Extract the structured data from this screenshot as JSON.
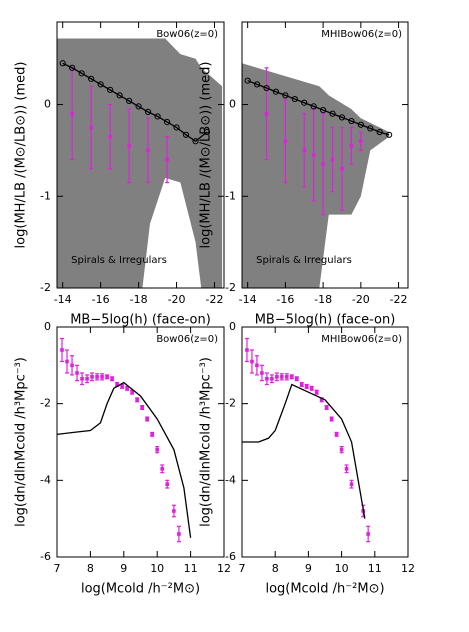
{
  "chart_data": [
    {
      "type": "line",
      "annotations": [
        "Bow06(z=0)",
        "Spirals & Irregulars"
      ],
      "xlabel": "MB−5log(h) (face-on)",
      "ylabel": "log(MH/LB /(M⊙/LB⊙)) (med)",
      "xlim": [
        -13.7,
        -22.5
      ],
      "xticks": [
        -14,
        -16,
        -18,
        -20,
        -22
      ],
      "ylim": [
        -2,
        0.9
      ],
      "yticks": [
        0,
        -1,
        -2
      ],
      "series": [
        {
          "type": "area",
          "color": "#808080",
          "x": [
            -13.7,
            -18.2,
            -18.6,
            -19.4,
            -20.2,
            -21,
            -21.3,
            -22.4
          ],
          "upper": [
            0.72,
            0.72,
            0.72,
            0.72,
            0.55,
            0.5,
            0.4,
            0.2
          ],
          "lower": [
            -2,
            -2,
            -1.3,
            -0.8,
            -0.85,
            -1.5,
            -2,
            -2
          ]
        },
        {
          "type": "errorbar",
          "color": "#e020e0",
          "x": [
            -14.5,
            -15.5,
            -16.5,
            -17.5,
            -18.5,
            -19.5
          ],
          "values": [
            -0.1,
            -0.25,
            -0.35,
            -0.45,
            -0.5,
            -0.6
          ],
          "errors": [
            0.5,
            0.45,
            0.35,
            0.4,
            0.35,
            0.25
          ]
        },
        {
          "type": "line",
          "color": "#000000",
          "x": [
            -14,
            -14.5,
            -15,
            -15.5,
            -16,
            -16.5,
            -17,
            -17.5,
            -18,
            -18.5,
            -19,
            -19.5,
            -20,
            -20.5,
            -21,
            -21.6
          ],
          "values": [
            0.45,
            0.4,
            0.34,
            0.28,
            0.22,
            0.16,
            0.1,
            0.04,
            -0.02,
            -0.08,
            -0.13,
            -0.19,
            -0.25,
            -0.33,
            -0.4,
            -0.3
          ]
        }
      ]
    },
    {
      "type": "line",
      "annotations": [
        "MHIBow06(z=0)",
        "Spirals & Irregulars"
      ],
      "xlabel": "MB−5log(h) (face-on)",
      "ylabel": "log(MH/LB /(M⊙/LB⊙)) (med)",
      "xlim": [
        -13.7,
        -22.5
      ],
      "xticks": [
        -14,
        -16,
        -18,
        -20,
        -22
      ],
      "ylim": [
        -2,
        0.9
      ],
      "yticks": [
        0,
        -1,
        -2
      ],
      "series": [
        {
          "type": "area",
          "color": "#808080",
          "x": [
            -13.7,
            -17.8,
            -18.3,
            -19.5,
            -20,
            -20.5,
            -21.5
          ],
          "upper": [
            0.45,
            0.2,
            0.1,
            -0.05,
            -0.15,
            -0.2,
            -0.3
          ],
          "lower": [
            -2,
            -2,
            -1.2,
            -1.2,
            -1,
            -0.5,
            -0.35
          ]
        },
        {
          "type": "errorbar",
          "color": "#e020e0",
          "x": [
            -15,
            -16,
            -17,
            -17.5,
            -18,
            -18.5,
            -19,
            -19.5,
            -20
          ],
          "values": [
            -0.1,
            -0.4,
            -0.5,
            -0.55,
            -0.65,
            -0.6,
            -0.7,
            -0.45,
            -0.4
          ],
          "errors": [
            0.5,
            0.45,
            0.4,
            0.5,
            0.55,
            0.35,
            0.45,
            0.2,
            0.1
          ]
        },
        {
          "type": "line",
          "color": "#000000",
          "x": [
            -14,
            -14.5,
            -15,
            -15.5,
            -16,
            -16.5,
            -17,
            -17.5,
            -18,
            -18.5,
            -19,
            -19.5,
            -20,
            -20.5,
            -21,
            -21.5
          ],
          "values": [
            0.26,
            0.22,
            0.18,
            0.14,
            0.1,
            0.06,
            0.02,
            -0.02,
            -0.06,
            -0.1,
            -0.14,
            -0.18,
            -0.22,
            -0.26,
            -0.3,
            -0.33
          ]
        }
      ]
    },
    {
      "type": "line",
      "annotations": [
        "Bow06(z=0)"
      ],
      "xlabel": "log(Mcold /h⁻²M⊙)",
      "ylabel": "log(dn/dlnMcold /h³Mpc⁻³)",
      "xlim": [
        7,
        12
      ],
      "xticks": [
        7,
        8,
        9,
        10,
        11,
        12
      ],
      "ylim": [
        -6,
        0
      ],
      "yticks": [
        0,
        -2,
        -4,
        -6
      ],
      "series": [
        {
          "type": "errorbar",
          "color": "#e020e0",
          "x": [
            7.15,
            7.3,
            7.45,
            7.6,
            7.75,
            7.9,
            8.05,
            8.2,
            8.35,
            8.5,
            8.65,
            8.8,
            8.95,
            9.1,
            9.25,
            9.4,
            9.55,
            9.7,
            9.85,
            10,
            10.15,
            10.3,
            10.5,
            10.65
          ],
          "values": [
            -0.6,
            -0.9,
            -1.0,
            -1.2,
            -1.35,
            -1.35,
            -1.3,
            -1.3,
            -1.3,
            -1.3,
            -1.35,
            -1.5,
            -1.55,
            -1.6,
            -1.7,
            -1.9,
            -2.1,
            -2.4,
            -2.8,
            -3.2,
            -3.7,
            -4.1,
            -4.8,
            -5.4
          ],
          "errors": [
            0.3,
            0.3,
            0.25,
            0.2,
            0.15,
            0.1,
            0.1,
            0.08,
            0.08,
            0.05,
            0.05,
            0.05,
            0.05,
            0.05,
            0.05,
            0.05,
            0.05,
            0.05,
            0.05,
            0.08,
            0.1,
            0.1,
            0.15,
            0.2
          ]
        },
        {
          "type": "line",
          "color": "#000000",
          "x": [
            7,
            7.5,
            8,
            8.3,
            8.5,
            8.7,
            9,
            9.5,
            10,
            10.5,
            10.8,
            11
          ],
          "values": [
            -2.8,
            -2.75,
            -2.7,
            -2.5,
            -2.0,
            -1.6,
            -1.45,
            -1.8,
            -2.4,
            -3.2,
            -4.2,
            -5.5
          ]
        }
      ]
    },
    {
      "type": "line",
      "annotations": [
        "MHIBow06(z=0)"
      ],
      "xlabel": "log(Mcold /h⁻²M⊙)",
      "ylabel": "log(dn/dlnMcold /h³Mpc⁻³)",
      "xlim": [
        7,
        12
      ],
      "xticks": [
        7,
        8,
        9,
        10,
        11,
        12
      ],
      "ylim": [
        -6,
        0
      ],
      "yticks": [
        0,
        -2,
        -4,
        -6
      ],
      "series": [
        {
          "type": "errorbar",
          "color": "#e020e0",
          "x": [
            7.15,
            7.3,
            7.45,
            7.6,
            7.75,
            7.9,
            8.05,
            8.2,
            8.35,
            8.5,
            8.65,
            8.8,
            8.95,
            9.1,
            9.25,
            9.4,
            9.55,
            9.7,
            9.85,
            10,
            10.15,
            10.3,
            10.65,
            10.8
          ],
          "values": [
            -0.6,
            -0.9,
            -1.0,
            -1.2,
            -1.35,
            -1.35,
            -1.3,
            -1.3,
            -1.3,
            -1.3,
            -1.35,
            -1.5,
            -1.55,
            -1.6,
            -1.7,
            -1.9,
            -2.1,
            -2.4,
            -2.8,
            -3.2,
            -3.7,
            -4.1,
            -4.8,
            -5.4
          ],
          "errors": [
            0.3,
            0.3,
            0.25,
            0.2,
            0.15,
            0.1,
            0.1,
            0.08,
            0.08,
            0.05,
            0.05,
            0.05,
            0.05,
            0.05,
            0.05,
            0.05,
            0.05,
            0.05,
            0.05,
            0.08,
            0.1,
            0.1,
            0.15,
            0.2
          ]
        },
        {
          "type": "line",
          "color": "#000000",
          "x": [
            7,
            7.5,
            7.8,
            8,
            8.3,
            8.5,
            9,
            9.5,
            10,
            10.3,
            10.5,
            10.7
          ],
          "values": [
            -3.0,
            -3.0,
            -2.9,
            -2.7,
            -2.0,
            -1.5,
            -1.7,
            -1.9,
            -2.4,
            -3.0,
            -4.0,
            -5.0
          ]
        }
      ]
    }
  ]
}
